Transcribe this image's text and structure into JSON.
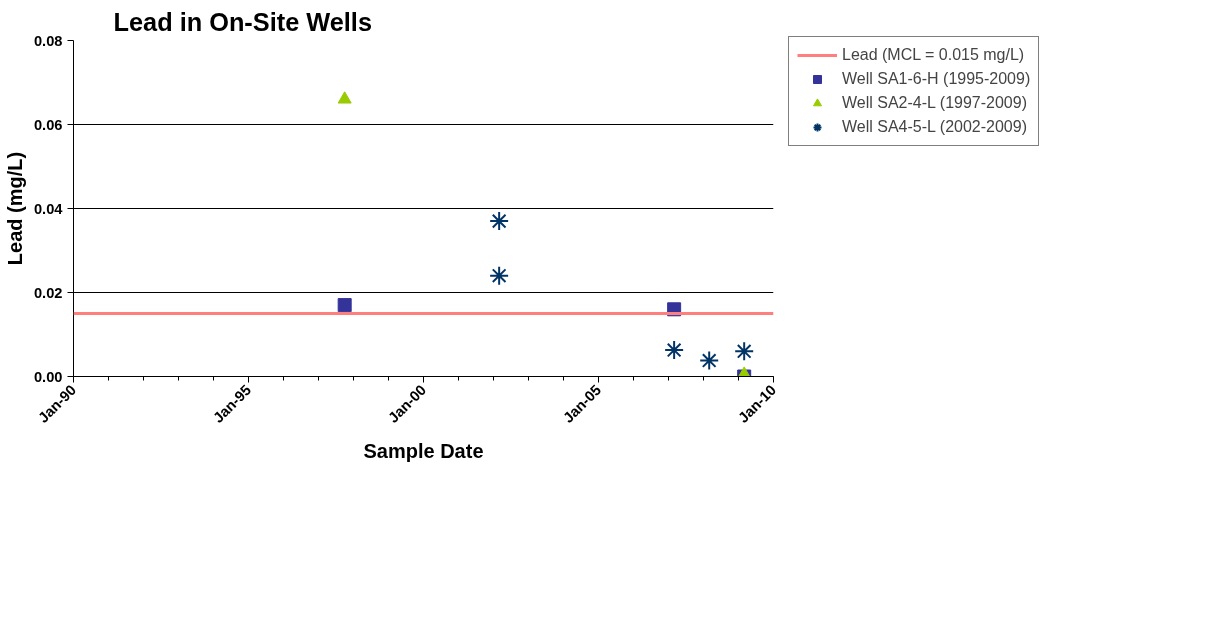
{
  "chart_data": {
    "type": "scatter",
    "title": "Lead in On-Site Wells",
    "xlabel": "Sample Date",
    "ylabel": "Lead (mg/L)",
    "xlim": [
      "1990-01",
      "2010-01"
    ],
    "xticks": [
      {
        "value": "1990-01",
        "label": "Jan-90"
      },
      {
        "value": "1995-01",
        "label": "Jan-95"
      },
      {
        "value": "2000-01",
        "label": "Jan-00"
      },
      {
        "value": "2005-01",
        "label": "Jan-05"
      },
      {
        "value": "2010-01",
        "label": "Jan-10"
      }
    ],
    "ylim": [
      0,
      0.08
    ],
    "yticks": [
      {
        "value": 0,
        "label": "0.00"
      },
      {
        "value": 0.02,
        "label": "0.02"
      },
      {
        "value": 0.04,
        "label": "0.04"
      },
      {
        "value": 0.06,
        "label": "0.06"
      },
      {
        "value": 0.08,
        "label": "0.08"
      }
    ],
    "grid": "y",
    "legend": "right",
    "ref_lines": [
      {
        "axis": "y",
        "value": 0.015,
        "label": "Lead (MCL = 0.015 mg/L)",
        "color": "#ff7f7f",
        "line_style": "solid"
      }
    ],
    "series": [
      {
        "name": "Well SA1-6-H (1995-2009)",
        "color": "#333399",
        "marker": "square",
        "x": [
          "1997-10",
          "2007-03",
          "2009-03"
        ],
        "values": [
          0.017,
          0.016,
          0.0
        ]
      },
      {
        "name": "Well SA2-4-L (1997-2009)",
        "color": "#99cc00",
        "marker": "triangle",
        "x": [
          "1997-10",
          "2009-03"
        ],
        "values": [
          0.066,
          0.0005
        ]
      },
      {
        "name": "Well SA4-5-L (2002-2009)",
        "color": "#003366",
        "marker": "cross",
        "x": [
          "2002-03",
          "2002-03",
          "2007-03",
          "2008-03",
          "2009-03"
        ],
        "values": [
          0.037,
          0.024,
          0.0063,
          0.0038,
          0.006
        ]
      }
    ]
  }
}
